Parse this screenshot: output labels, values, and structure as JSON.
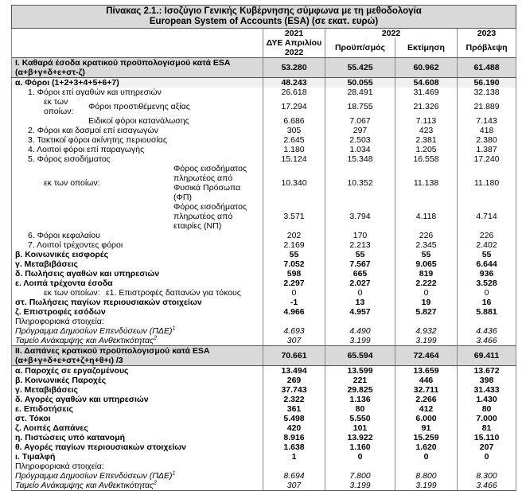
{
  "title": [
    "Πίνακας 2.1.: Ισοζύγιο Γενικής Κυβέρνησης σύμφωνα με τη μεθοδολογία",
    "European System of Accounts (ESA) (σε εκατ. ευρώ)"
  ],
  "header": {
    "years": [
      "2021",
      "2022",
      "2023"
    ],
    "columns": [
      "ΔΥΕ Απριλίου\n2022",
      "Προϋπ/σμός",
      "Εκτίμηση",
      "Πρόβλεψη"
    ]
  },
  "rows": [
    {
      "label": "Ι. Καθαρά έσοδα κρατικού προϋπολογισμού κατά ESA\n(α+β+γ+δ+ε+στ-ζ)",
      "values": [
        "53.280",
        "55.425",
        "60.962",
        "61.488"
      ]
    },
    {
      "label": "α. Φόροι (1+2+3+4+5+6+7)",
      "values": [
        "48.243",
        "50.055",
        "54.608",
        "56.190"
      ]
    },
    {
      "label": "1. Φόροι επί αγαθών και υπηρεσιών",
      "values": [
        "26.618",
        "28.491",
        "31.469",
        "32.138"
      ]
    },
    {
      "prefix": "εκ των οποίων:",
      "label": "Φόροι προστιθέμενης αξίας",
      "values": [
        "17.294",
        "18.755",
        "21.326",
        "21.889"
      ]
    },
    {
      "label": "Ειδικοί φόροι κατανάλωσης",
      "values": [
        "6.686",
        "7.067",
        "7.113",
        "7.143"
      ]
    },
    {
      "label": "2. Φόροι και δασμοί επί εισαγωγών",
      "values": [
        "305",
        "297",
        "423",
        "418"
      ]
    },
    {
      "label": "3. Τακτικοί φόροι ακίνητης περιουσίας",
      "values": [
        "2.645",
        "2.503",
        "2.381",
        "2.380"
      ]
    },
    {
      "label": "4. Λοιποί φόροι επί παραγωγής",
      "values": [
        "1.180",
        "1.034",
        "1.205",
        "1.387"
      ]
    },
    {
      "label": "5. Φόρος εισοδήματος",
      "values": [
        "15.124",
        "15.348",
        "16.558",
        "17.240"
      ]
    },
    {
      "prefix": "εκ των οποίων:",
      "label": "Φόρος εισοδήματος πληρωτέος από Φυσικά Πρόσωπα (ΦΠ)",
      "values": [
        "10.340",
        "10.352",
        "11.138",
        "11.180"
      ]
    },
    {
      "label": "Φόρος εισοδήματος πληρωτέος από εταιρίες (ΝΠ)",
      "values": [
        "3.571",
        "3.794",
        "4.118",
        "4.714"
      ]
    },
    {
      "label": "6. Φόροι κεφαλαίου",
      "values": [
        "202",
        "170",
        "226",
        "226"
      ]
    },
    {
      "label": "7. Λοιποί τρέχοντες φόροι",
      "values": [
        "2.169",
        "2.213",
        "2.345",
        "2.402"
      ]
    },
    {
      "label": "β. Κοινωνικές εισφορές",
      "values": [
        "55",
        "55",
        "55",
        "55"
      ]
    },
    {
      "label": "γ. Μεταβιβάσεις",
      "values": [
        "7.052",
        "7.567",
        "9.065",
        "6.644"
      ]
    },
    {
      "label": "δ. Πωλήσεις αγαθών και υπηρεσιών",
      "values": [
        "598",
        "665",
        "819",
        "936"
      ]
    },
    {
      "label": "ε. Λοιπά τρέχοντα έσοδα",
      "values": [
        "2.297",
        "2.027",
        "2.222",
        "3.528"
      ]
    },
    {
      "prefix": "εκ των οποίων:",
      "label": "ε1. Επιστροφές δαπανών για τόκους",
      "values": [
        "0",
        "0",
        "0",
        "0"
      ]
    },
    {
      "label": "στ. Πωλήσεις παγίων περιουσιακών στοιχείων",
      "values": [
        "-1",
        "13",
        "19",
        "16"
      ]
    },
    {
      "label": "ζ. Επιστροφές εσόδων",
      "values": [
        "4.966",
        "4.957",
        "5.827",
        "5.881"
      ]
    },
    {
      "label": "Πληροφοριακά στοιχεία:",
      "values": []
    },
    {
      "label": "Πρόγραμμα Δημοσίων Επενδύσεων (ΠΔΕ)",
      "note": "1",
      "values": [
        "4.693",
        "4.490",
        "4.932",
        "4.436"
      ]
    },
    {
      "label": "Ταμείο Ανάκαμψης και Ανθεκτικότητας",
      "note": "2",
      "values": [
        "307",
        "3.199",
        "3.199",
        "3.466"
      ]
    },
    {
      "label": "ΙΙ. Δαπάνες κρατικού προϋπολογισμού κατά ESA\n(α+β+γ+δ+ε+στ+ζ+η+θ+ι) /3",
      "values": [
        "70.661",
        "65.594",
        "72.464",
        "69.411"
      ]
    },
    {
      "label": "α. Παροχές σε εργαζομένους",
      "values": [
        "13.494",
        "13.599",
        "13.659",
        "13.672"
      ]
    },
    {
      "label": "β. Κοινωνικές Παροχές",
      "values": [
        "269",
        "221",
        "446",
        "398"
      ]
    },
    {
      "label": "γ. Μεταβιβάσεις",
      "values": [
        "37.743",
        "29.825",
        "32.711",
        "31.433"
      ]
    },
    {
      "label": "δ. Αγορές αγαθών και υπηρεσιών",
      "values": [
        "2.322",
        "1.136",
        "2.266",
        "1.430"
      ]
    },
    {
      "label": "ε. Επιδοτήσεις",
      "values": [
        "361",
        "80",
        "412",
        "80"
      ]
    },
    {
      "label": "στ. Τόκοι",
      "values": [
        "5.498",
        "5.550",
        "6.000",
        "7.000"
      ]
    },
    {
      "label": "ζ. Λοιπές Δαπάνες",
      "values": [
        "420",
        "101",
        "91",
        "81"
      ]
    },
    {
      "label": "η. Πιστώσεις υπό κατανομή",
      "values": [
        "8.916",
        "13.922",
        "15.259",
        "15.110"
      ]
    },
    {
      "label": "θ. Αγορές παγίων περιουσιακών στοιχείων",
      "values": [
        "1.638",
        "1.160",
        "1.620",
        "207"
      ]
    },
    {
      "label": "ι. Τιμαλφή",
      "values": [
        "1",
        "0",
        "0",
        "0"
      ]
    },
    {
      "label": "Πληροφοριακά στοιχεία:",
      "values": []
    },
    {
      "label": "Πρόγραμμα Δημοσίων Επενδύσεων (ΠΔΕ)",
      "note": "1",
      "values": [
        "8.694",
        "7.800",
        "8.800",
        "8.300"
      ]
    },
    {
      "label": "Ταμείο Ανάκαμψης και Ανθεκτικότητας",
      "note": "2",
      "values": [
        "307",
        "3.199",
        "3.199",
        "3.466"
      ]
    }
  ]
}
